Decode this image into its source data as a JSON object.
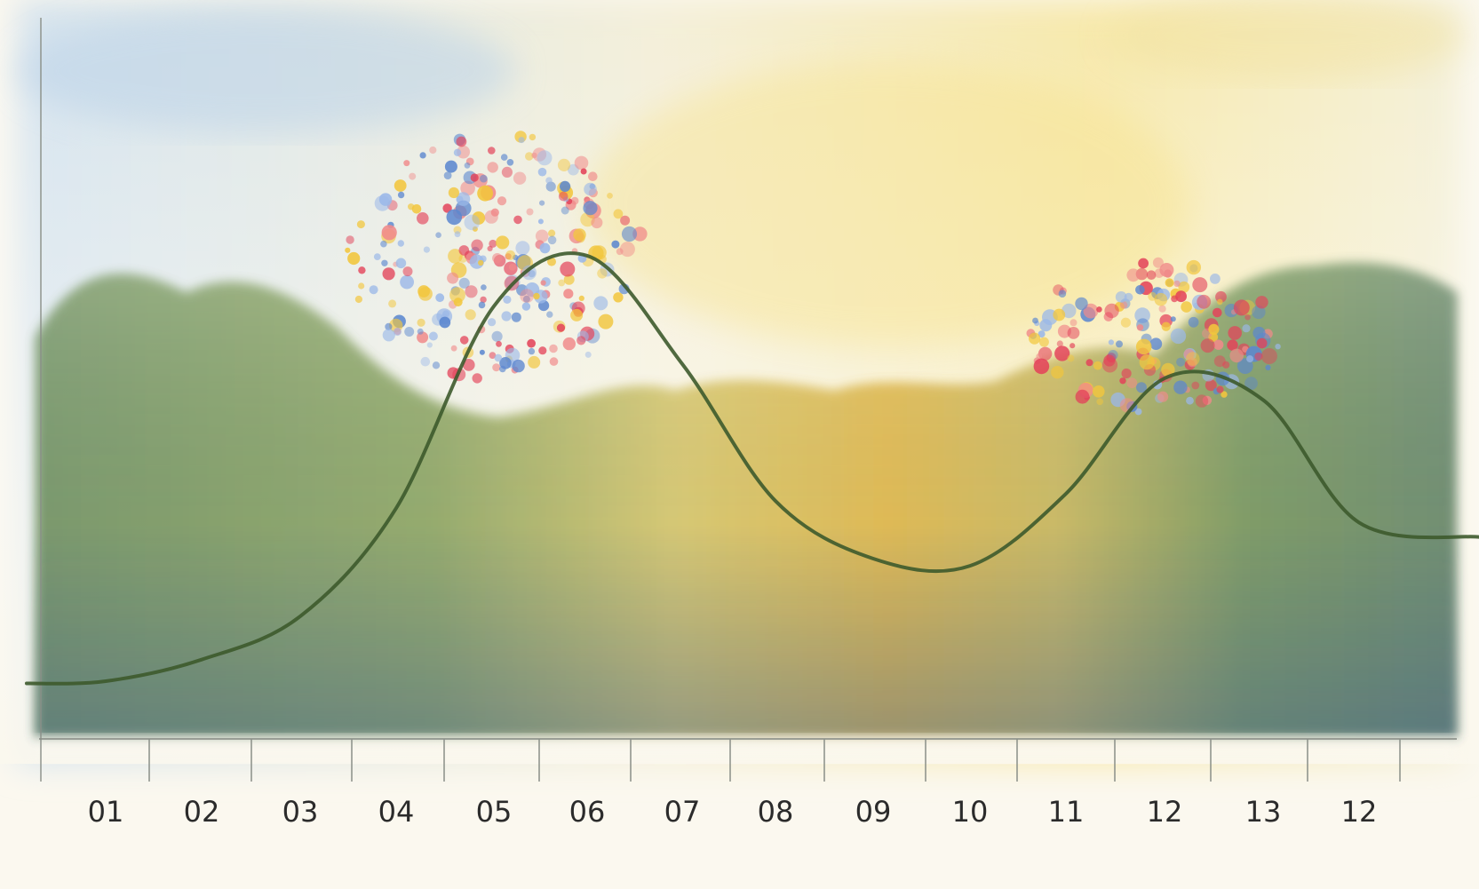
{
  "chart_data": {
    "type": "line",
    "title": "",
    "xlabel": "",
    "ylabel": "",
    "categories": [
      "01",
      "02",
      "03",
      "04",
      "05",
      "06",
      "07",
      "08",
      "09",
      "10",
      "11",
      "12",
      "13",
      "12"
    ],
    "series": [
      {
        "values": [
          8,
          11,
          17,
          32,
          60,
          67,
          52,
          33,
          25,
          24,
          34,
          50,
          47,
          30
        ]
      }
    ],
    "ylim": [
      0,
      100
    ],
    "grid": false,
    "legend": "none",
    "colors": {
      "line": "#3d5a2c",
      "axis": "#8a8f88",
      "label": "#2b2b2b",
      "sky_blue": "#c9dceb",
      "sky_yellow": "#f6e7a2",
      "foliage_green": "#6f9152",
      "foliage_blue": "#536f93",
      "foliage_gold": "#e3b93e",
      "blossom_red": "#e3435a",
      "blossom_blue": "#5c87cf",
      "blossom_yellow": "#f2c63d"
    }
  }
}
